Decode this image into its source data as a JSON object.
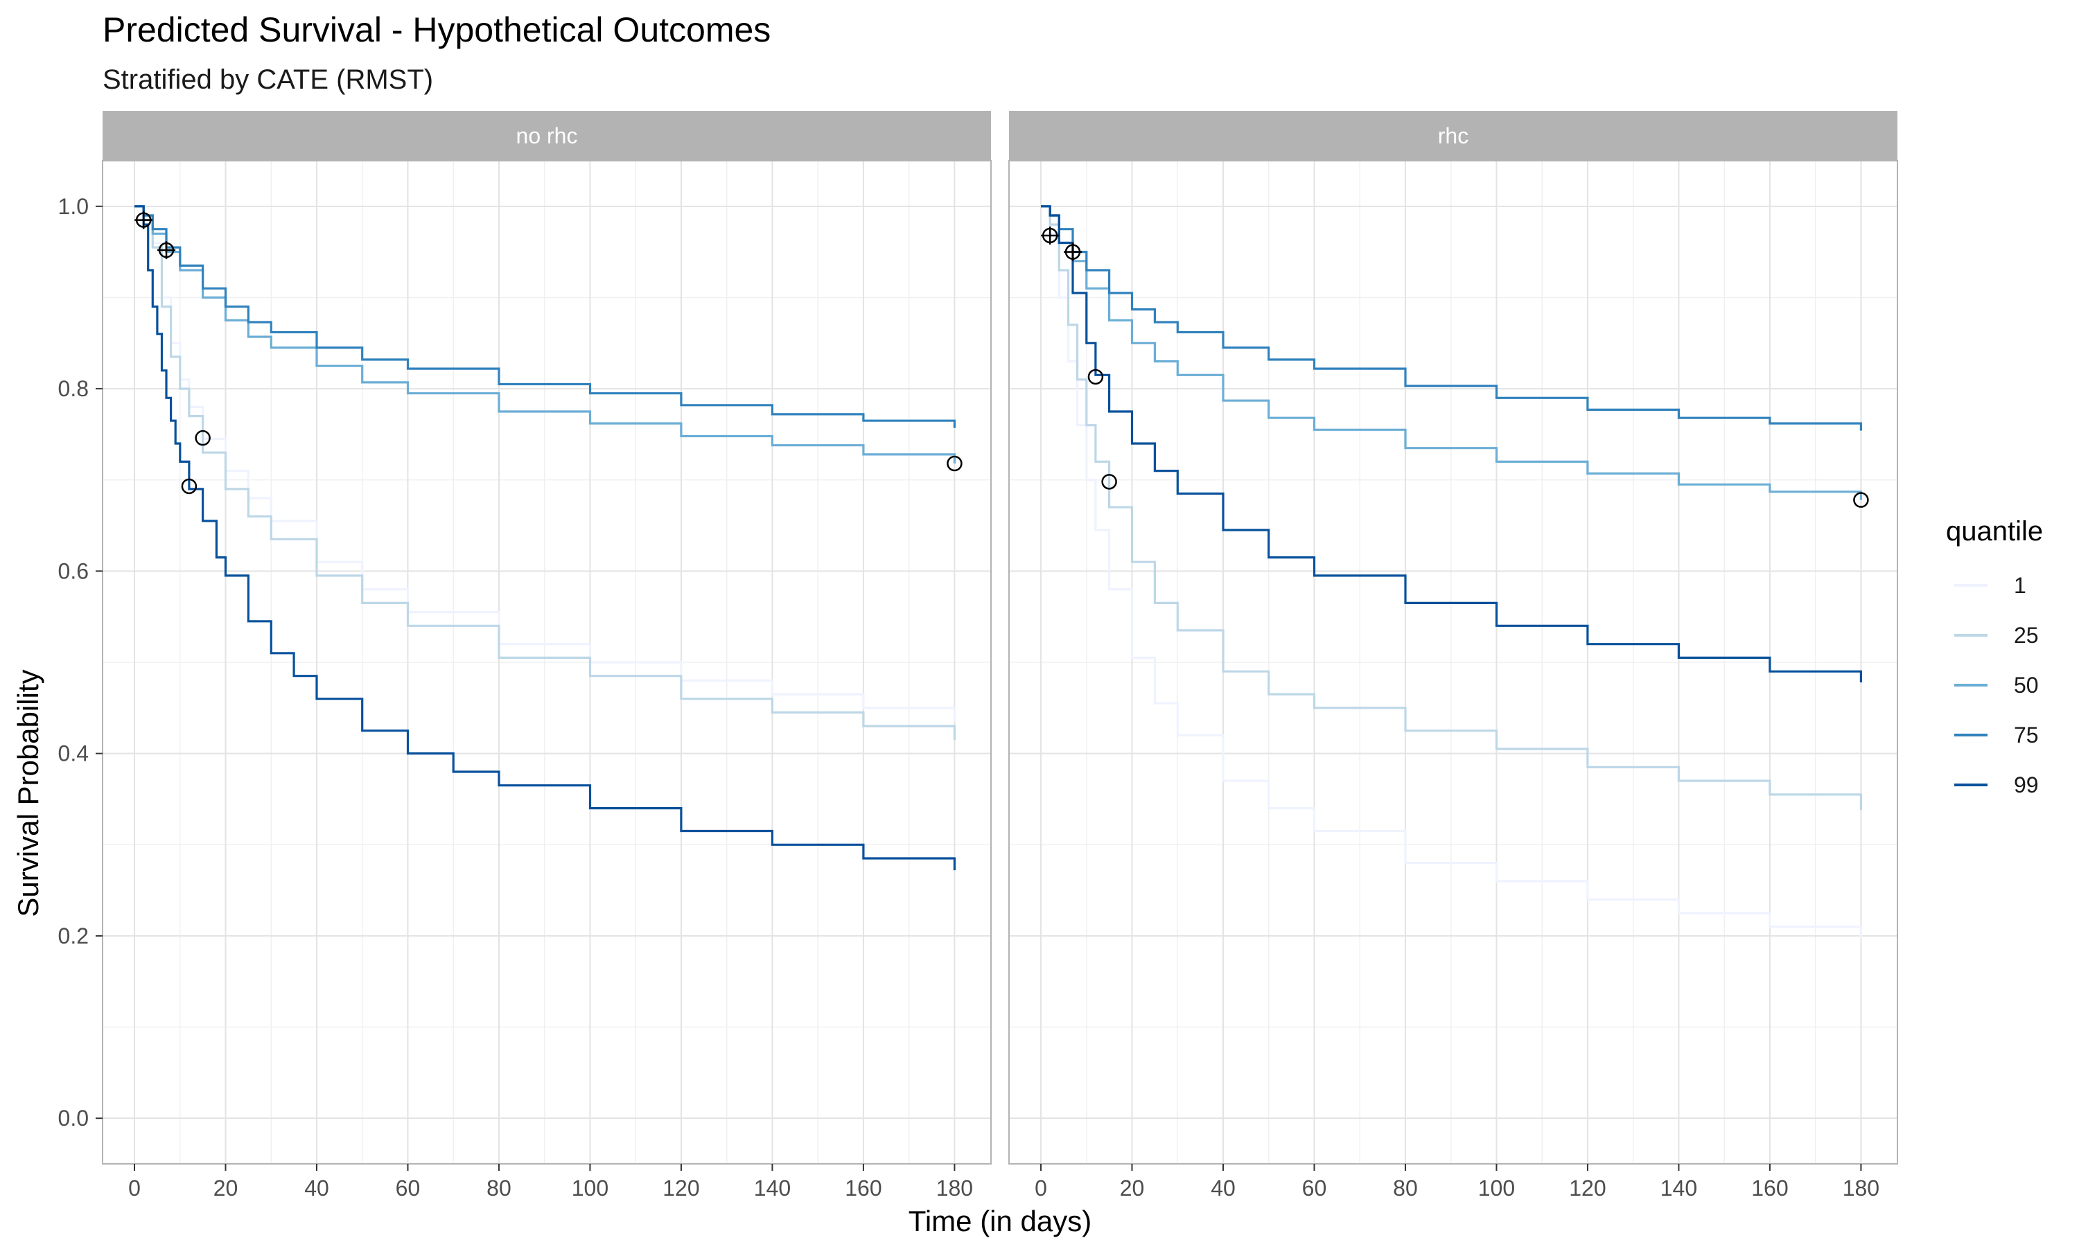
{
  "chart_data": {
    "type": "line",
    "title": "Predicted Survival - Hypothetical Outcomes",
    "subtitle": "Stratified by CATE (RMST)",
    "xlabel": "Time (in days)",
    "ylabel": "Survival Probability",
    "xlim": [
      -7,
      188
    ],
    "ylim": [
      -0.05,
      1.05
    ],
    "x_ticks": [
      0,
      20,
      40,
      60,
      80,
      100,
      120,
      140,
      160,
      180
    ],
    "y_ticks": [
      0.0,
      0.2,
      0.4,
      0.6,
      0.8,
      1.0
    ],
    "y_tick_labels": [
      "0.0",
      "0.2",
      "0.4",
      "0.6",
      "0.8",
      "1.0"
    ],
    "grid": true,
    "step_lines": true,
    "legend": {
      "title": "quantile",
      "position": "right",
      "entries": [
        "1",
        "25",
        "50",
        "75",
        "99"
      ]
    },
    "colors": {
      "1": "#eff3ff",
      "25": "#bdd7e7",
      "50": "#6baed6",
      "75": "#3182bd",
      "99": "#08519c"
    },
    "panels": [
      {
        "strip": "no rhc",
        "series": [
          {
            "name": "1",
            "x": [
              0,
              2,
              4,
              6,
              8,
              10,
              12,
              15,
              20,
              25,
              30,
              40,
              50,
              60,
              80,
              100,
              120,
              140,
              160,
              180
            ],
            "y": [
              1.0,
              0.99,
              0.96,
              0.9,
              0.85,
              0.81,
              0.78,
              0.745,
              0.71,
              0.68,
              0.655,
              0.61,
              0.58,
              0.555,
              0.52,
              0.5,
              0.48,
              0.465,
              0.45,
              0.435
            ]
          },
          {
            "name": "25",
            "x": [
              0,
              2,
              4,
              6,
              8,
              10,
              12,
              15,
              20,
              25,
              30,
              40,
              50,
              60,
              80,
              100,
              120,
              140,
              160,
              180
            ],
            "y": [
              1.0,
              0.985,
              0.955,
              0.89,
              0.835,
              0.8,
              0.77,
              0.73,
              0.69,
              0.66,
              0.635,
              0.595,
              0.565,
              0.54,
              0.505,
              0.485,
              0.46,
              0.445,
              0.43,
              0.415
            ]
          },
          {
            "name": "50",
            "x": [
              0,
              2,
              4,
              7,
              10,
              15,
              20,
              25,
              30,
              40,
              50,
              60,
              80,
              100,
              120,
              140,
              160,
              180
            ],
            "y": [
              1.0,
              0.99,
              0.97,
              0.95,
              0.93,
              0.9,
              0.875,
              0.857,
              0.845,
              0.825,
              0.807,
              0.795,
              0.775,
              0.762,
              0.748,
              0.738,
              0.728,
              0.718
            ]
          },
          {
            "name": "75",
            "x": [
              0,
              2,
              4,
              7,
              10,
              15,
              20,
              25,
              30,
              40,
              50,
              60,
              80,
              100,
              120,
              140,
              160,
              180
            ],
            "y": [
              1.0,
              0.99,
              0.975,
              0.955,
              0.935,
              0.91,
              0.89,
              0.873,
              0.862,
              0.845,
              0.832,
              0.822,
              0.805,
              0.795,
              0.782,
              0.772,
              0.765,
              0.757
            ]
          },
          {
            "name": "99",
            "x": [
              0,
              2,
              3,
              4,
              5,
              6,
              7,
              8,
              9,
              10,
              12,
              15,
              18,
              20,
              25,
              30,
              35,
              40,
              50,
              60,
              70,
              80,
              100,
              120,
              140,
              160,
              180
            ],
            "y": [
              1.0,
              0.98,
              0.93,
              0.89,
              0.86,
              0.82,
              0.79,
              0.765,
              0.74,
              0.72,
              0.69,
              0.655,
              0.615,
              0.595,
              0.545,
              0.51,
              0.485,
              0.46,
              0.425,
              0.4,
              0.38,
              0.365,
              0.34,
              0.315,
              0.3,
              0.285,
              0.272
            ]
          }
        ],
        "censor_points": [
          {
            "x": 2,
            "y": 0.985,
            "cross": true
          },
          {
            "x": 7,
            "y": 0.952,
            "cross": true
          },
          {
            "x": 12,
            "y": 0.693,
            "cross": false
          },
          {
            "x": 15,
            "y": 0.746,
            "cross": false
          },
          {
            "x": 180,
            "y": 0.718,
            "cross": false
          }
        ]
      },
      {
        "strip": "rhc",
        "series": [
          {
            "name": "1",
            "x": [
              0,
              2,
              4,
              6,
              8,
              10,
              12,
              15,
              20,
              25,
              30,
              40,
              50,
              60,
              80,
              100,
              120,
              140,
              160,
              180
            ],
            "y": [
              1.0,
              0.97,
              0.9,
              0.83,
              0.76,
              0.7,
              0.645,
              0.58,
              0.505,
              0.455,
              0.42,
              0.37,
              0.34,
              0.315,
              0.28,
              0.26,
              0.24,
              0.225,
              0.21,
              0.197
            ]
          },
          {
            "name": "25",
            "x": [
              0,
              2,
              4,
              6,
              8,
              10,
              12,
              15,
              20,
              25,
              30,
              40,
              50,
              60,
              80,
              100,
              120,
              140,
              160,
              180
            ],
            "y": [
              1.0,
              0.98,
              0.93,
              0.87,
              0.81,
              0.76,
              0.72,
              0.67,
              0.61,
              0.565,
              0.535,
              0.49,
              0.465,
              0.45,
              0.425,
              0.405,
              0.385,
              0.37,
              0.355,
              0.338
            ]
          },
          {
            "name": "50",
            "x": [
              0,
              2,
              4,
              7,
              10,
              15,
              20,
              25,
              30,
              40,
              50,
              60,
              80,
              100,
              120,
              140,
              160,
              180
            ],
            "y": [
              1.0,
              0.99,
              0.96,
              0.94,
              0.91,
              0.875,
              0.85,
              0.83,
              0.815,
              0.787,
              0.768,
              0.755,
              0.735,
              0.72,
              0.707,
              0.695,
              0.687,
              0.678
            ]
          },
          {
            "name": "75",
            "x": [
              0,
              2,
              4,
              7,
              10,
              15,
              20,
              25,
              30,
              40,
              50,
              60,
              80,
              100,
              120,
              140,
              160,
              180
            ],
            "y": [
              1.0,
              0.99,
              0.975,
              0.95,
              0.93,
              0.905,
              0.887,
              0.873,
              0.862,
              0.845,
              0.832,
              0.822,
              0.803,
              0.79,
              0.777,
              0.768,
              0.762,
              0.754
            ]
          },
          {
            "name": "99",
            "x": [
              0,
              2,
              4,
              7,
              10,
              12,
              15,
              20,
              25,
              30,
              40,
              50,
              60,
              80,
              100,
              120,
              140,
              160,
              180
            ],
            "y": [
              1.0,
              0.99,
              0.96,
              0.905,
              0.85,
              0.815,
              0.775,
              0.74,
              0.71,
              0.685,
              0.645,
              0.615,
              0.595,
              0.565,
              0.54,
              0.52,
              0.505,
              0.49,
              0.478
            ]
          }
        ],
        "censor_points": [
          {
            "x": 2,
            "y": 0.968,
            "cross": true
          },
          {
            "x": 7,
            "y": 0.95,
            "cross": true
          },
          {
            "x": 12,
            "y": 0.813,
            "cross": false
          },
          {
            "x": 15,
            "y": 0.698,
            "cross": false
          },
          {
            "x": 180,
            "y": 0.678,
            "cross": false
          }
        ]
      }
    ]
  }
}
